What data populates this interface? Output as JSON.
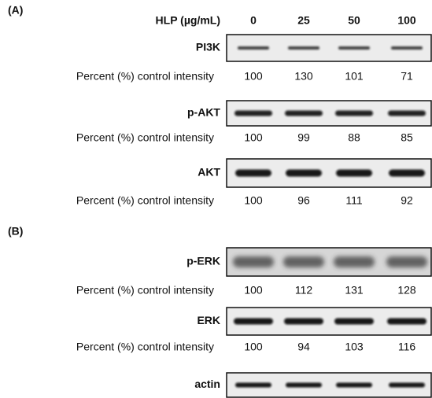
{
  "panels": [
    {
      "label": "(A)",
      "header": {
        "label": "HLP (µg/mL)",
        "doses": [
          0,
          25,
          50,
          100
        ]
      },
      "blots": [
        {
          "name": "PI3K",
          "row_label": "Percent (%) control intensity",
          "values": [
            100,
            130,
            101,
            71
          ]
        },
        {
          "name": "p-AKT",
          "row_label": "Percent (%) control intensity",
          "values": [
            100,
            99,
            88,
            85
          ]
        },
        {
          "name": "AKT",
          "row_label": "Percent (%) control intensity",
          "values": [
            100,
            96,
            111,
            92
          ]
        }
      ]
    },
    {
      "label": "(B)",
      "blots": [
        {
          "name": "p-ERK",
          "row_label": "Percent (%) control intensity",
          "values": [
            100,
            112,
            131,
            128
          ]
        },
        {
          "name": "ERK",
          "row_label": "Percent (%) control intensity",
          "values": [
            100,
            94,
            103,
            116
          ]
        },
        {
          "name": "actin"
        }
      ]
    }
  ]
}
